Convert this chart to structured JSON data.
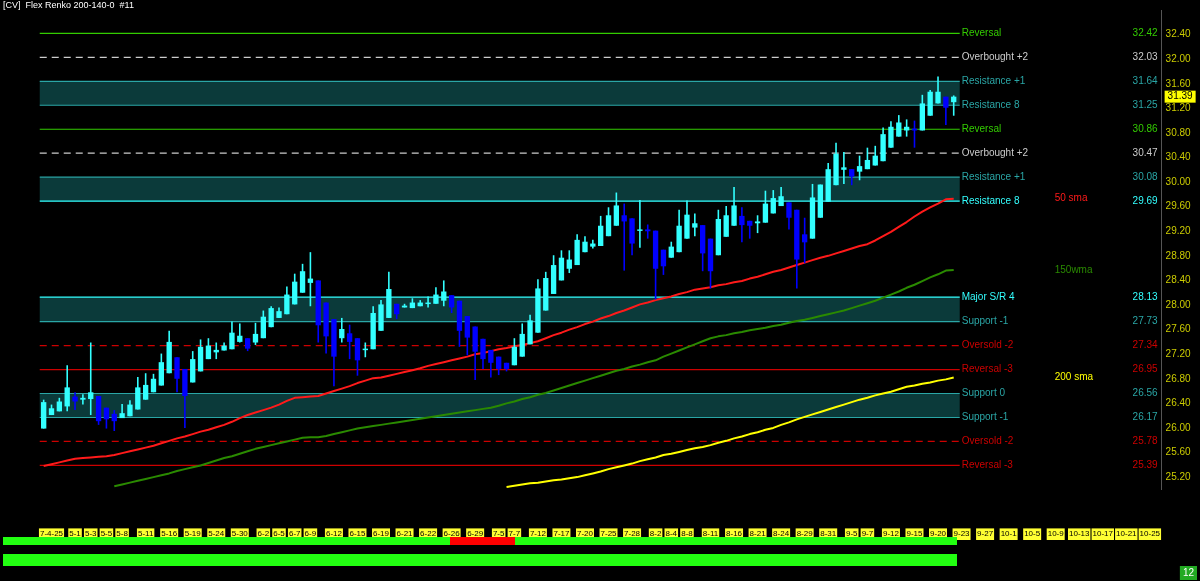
{
  "chart_data": {
    "type": "candlestick",
    "title": "[CV]  Flex Renko 200-140-0  #11",
    "categories": [
      null,
      "7-4-25",
      null,
      null,
      "5-1",
      null,
      "5-3",
      null,
      "5-5",
      null,
      "5-8",
      null,
      null,
      "5-11",
      null,
      null,
      "5-16",
      null,
      null,
      "5-19",
      null,
      null,
      "5-24",
      null,
      null,
      "5-30",
      null,
      null,
      "6-2",
      null,
      "6-5",
      null,
      "6-7",
      null,
      "6-9",
      null,
      null,
      "6-12",
      null,
      null,
      "6-15",
      null,
      null,
      "6-19",
      null,
      null,
      "6-21",
      null,
      null,
      "6-22",
      null,
      null,
      "6-26",
      null,
      null,
      "6-29",
      null,
      null,
      "7-5",
      null,
      "7-7",
      null,
      null,
      "7-12",
      null,
      null,
      "7-17",
      null,
      null,
      "7-20",
      null,
      null,
      "7-25",
      null,
      null,
      "7-28",
      null,
      null,
      "8-2",
      null,
      "8-4",
      null,
      "8-8",
      null,
      null,
      "8-11",
      null,
      null,
      "8-16",
      null,
      null,
      "8-21",
      null,
      null,
      "8-24",
      null,
      null,
      "8-29",
      null,
      null,
      "8-31",
      null,
      null,
      "9-5",
      null,
      "9-7",
      null,
      null,
      "9-12",
      null,
      null,
      "9-15",
      null,
      null,
      "9-20",
      null,
      null,
      "9-23",
      null,
      null,
      "9-27",
      null,
      null,
      "10-1",
      null,
      null,
      "10-5",
      null,
      null,
      "10-9",
      null,
      null,
      "10-13",
      null,
      null,
      "10-17",
      null,
      null,
      "10-21",
      null,
      null,
      "10-25",
      null
    ],
    "ylim": [
      25.0,
      32.8
    ],
    "yticks": [
      {
        "value": 25.2,
        "label": "25.20"
      },
      {
        "value": 25.6,
        "label": "25.60"
      },
      {
        "value": 26.0,
        "label": "26.00"
      },
      {
        "value": 26.4,
        "label": "26.40"
      },
      {
        "value": 26.8,
        "label": "26.80"
      },
      {
        "value": 27.2,
        "label": "27.20"
      },
      {
        "value": 27.6,
        "label": "27.60"
      },
      {
        "value": 28.0,
        "label": "28.00"
      },
      {
        "value": 28.4,
        "label": "28.40"
      },
      {
        "value": 28.8,
        "label": "28.80"
      },
      {
        "value": 29.2,
        "label": "29.20"
      },
      {
        "value": 29.6,
        "label": "29.60"
      },
      {
        "value": 30.0,
        "label": "30.00"
      },
      {
        "value": 30.4,
        "label": "30.40"
      },
      {
        "value": 30.8,
        "label": "30.80"
      },
      {
        "value": 31.2,
        "label": "31.20"
      },
      {
        "value": 31.6,
        "label": "31.60"
      },
      {
        "value": 32.0,
        "label": "32.00"
      },
      {
        "value": 32.4,
        "label": "32.40"
      }
    ],
    "bands": [
      {
        "axis": "y",
        "from": 31.25,
        "to": 31.64,
        "color": "#0b3a3a"
      },
      {
        "axis": "y",
        "from": 29.69,
        "to": 30.08,
        "color": "#0b3a3a"
      },
      {
        "axis": "y",
        "from": 27.73,
        "to": 28.13,
        "color": "#0b3a3a"
      },
      {
        "axis": "y",
        "from": 26.17,
        "to": 26.56,
        "color": "#0b3a3a"
      }
    ],
    "ref_lines": [
      {
        "axis": "y",
        "value": 32.42,
        "label": "Reversal",
        "color": "#33cc00",
        "line_style": "solid"
      },
      {
        "axis": "y",
        "value": 32.03,
        "label": "Overbought +2",
        "color": "#cccccc",
        "line_style": "dashed"
      },
      {
        "axis": "y",
        "value": 31.64,
        "label": "Resistance +1",
        "color": "#2aa6a6",
        "line_style": "solid"
      },
      {
        "axis": "y",
        "value": 31.25,
        "label": "Resistance 8",
        "color": "#2aa6a6",
        "line_style": "solid"
      },
      {
        "axis": "y",
        "value": 30.86,
        "label": "Reversal",
        "color": "#33cc00",
        "line_style": "solid"
      },
      {
        "axis": "y",
        "value": 30.47,
        "label": "Overbought +2",
        "color": "#cccccc",
        "line_style": "dashed"
      },
      {
        "axis": "y",
        "value": 30.08,
        "label": "Resistance +1",
        "color": "#2aa6a6",
        "line_style": "solid"
      },
      {
        "axis": "y",
        "value": 29.69,
        "label": "Resistance 8",
        "color": "#33ffff",
        "line_style": "solid"
      },
      {
        "axis": "y",
        "value": 28.13,
        "label": "Major S/R 4",
        "color": "#33ffff",
        "line_style": "solid"
      },
      {
        "axis": "y",
        "value": 27.73,
        "label": "Support -1",
        "color": "#2aa6a6",
        "line_style": "solid"
      },
      {
        "axis": "y",
        "value": 27.34,
        "label": "Oversold -2",
        "color": "#cc0000",
        "line_style": "dashed"
      },
      {
        "axis": "y",
        "value": 26.95,
        "label": "Reversal -3",
        "color": "#cc0000",
        "line_style": "solid"
      },
      {
        "axis": "y",
        "value": 26.56,
        "label": "Support 0",
        "color": "#2aa6a6",
        "line_style": "solid"
      },
      {
        "axis": "y",
        "value": 26.17,
        "label": "Support -1",
        "color": "#2aa6a6",
        "line_style": "solid"
      },
      {
        "axis": "y",
        "value": 25.78,
        "label": "Oversold -2",
        "color": "#cc0000",
        "line_style": "dashed"
      },
      {
        "axis": "y",
        "value": 25.39,
        "label": "Reversal -3",
        "color": "#cc0000",
        "line_style": "solid"
      }
    ],
    "annotations": [
      "12",
      "31.39",
      "32.42",
      "32.03",
      "31.64",
      "31.25",
      "30.86",
      "30.47",
      "30.08",
      "29.69",
      "28.13",
      "27.73",
      "27.34",
      "26.95",
      "26.56",
      "26.17",
      "25.78",
      "25.39"
    ],
    "series": [
      {
        "type": "line",
        "name": "50 sma",
        "color": "#ff1a1a",
        "values": [
          25.38,
          25.41,
          25.44,
          25.47,
          25.5,
          25.51,
          25.52,
          25.53,
          25.54,
          25.56,
          25.59,
          25.62,
          25.65,
          25.68,
          25.71,
          25.75,
          25.79,
          25.83,
          25.86,
          25.9,
          25.94,
          25.97,
          26.01,
          26.05,
          26.1,
          26.16,
          26.21,
          26.25,
          26.29,
          26.33,
          26.38,
          26.44,
          26.49,
          26.5,
          26.51,
          26.52,
          26.56,
          26.6,
          26.64,
          26.68,
          26.73,
          26.77,
          26.81,
          26.82,
          26.85,
          26.88,
          26.91,
          26.94,
          26.97,
          27.01,
          27.04,
          27.07,
          27.1,
          27.13,
          27.16,
          27.2,
          27.22,
          27.25,
          27.28,
          27.3,
          27.33,
          27.35,
          27.38,
          27.41,
          27.46,
          27.51,
          27.55,
          27.6,
          27.64,
          27.69,
          27.73,
          27.78,
          27.82,
          27.87,
          27.91,
          27.96,
          28.01,
          28.04,
          28.08,
          28.11,
          28.14,
          28.18,
          28.21,
          28.25,
          28.27,
          28.29,
          28.32,
          28.34,
          28.37,
          28.39,
          28.43,
          28.46,
          28.5,
          28.54,
          28.57,
          28.61,
          28.65,
          28.69,
          28.73,
          28.77,
          28.8,
          28.84,
          28.88,
          28.92,
          28.96,
          28.99,
          29.05,
          29.12,
          29.19,
          29.27,
          29.35,
          29.44,
          29.52,
          29.59,
          29.65,
          29.72,
          29.73,
          null,
          null,
          null,
          null,
          null,
          null,
          null,
          null,
          null,
          null,
          null,
          null,
          null,
          null,
          null,
          null,
          null,
          null,
          null,
          null,
          null,
          null,
          null,
          null,
          null,
          null
        ]
      },
      {
        "type": "line",
        "name": "150wma",
        "color": "#2a8a00",
        "values": [
          null,
          null,
          null,
          null,
          null,
          null,
          null,
          null,
          null,
          25.05,
          25.08,
          25.11,
          25.14,
          25.17,
          25.2,
          25.23,
          25.26,
          25.3,
          25.33,
          25.36,
          25.39,
          25.43,
          25.47,
          25.51,
          25.54,
          25.58,
          25.62,
          25.66,
          25.69,
          25.72,
          25.75,
          25.78,
          25.81,
          25.84,
          25.85,
          25.85,
          25.87,
          25.9,
          25.93,
          25.96,
          25.99,
          26.01,
          26.03,
          26.05,
          26.07,
          26.09,
          26.11,
          26.13,
          26.15,
          26.17,
          26.19,
          26.21,
          26.23,
          26.25,
          26.27,
          26.29,
          26.31,
          26.33,
          26.36,
          26.4,
          26.43,
          26.47,
          26.5,
          26.54,
          26.57,
          26.61,
          26.65,
          26.69,
          26.73,
          26.77,
          26.81,
          26.85,
          26.89,
          26.93,
          26.96,
          27.0,
          27.03,
          27.07,
          27.1,
          27.16,
          27.21,
          27.26,
          27.31,
          27.36,
          27.41,
          27.46,
          27.49,
          27.51,
          27.54,
          27.56,
          27.59,
          27.61,
          27.63,
          27.66,
          27.68,
          27.71,
          27.74,
          27.76,
          27.79,
          27.82,
          27.85,
          27.88,
          27.91,
          27.95,
          27.99,
          28.03,
          28.07,
          28.12,
          28.17,
          28.22,
          28.28,
          28.33,
          28.39,
          28.45,
          28.5,
          28.56,
          28.57,
          null,
          null,
          null,
          null,
          null,
          null,
          null,
          null,
          null,
          null,
          null,
          null,
          null,
          null,
          null,
          null,
          null,
          null,
          null,
          null,
          null,
          null,
          null,
          null,
          null,
          null
        ]
      },
      {
        "type": "line",
        "name": "200 sma",
        "color": "#ffff00",
        "values": [
          null,
          null,
          null,
          null,
          null,
          null,
          null,
          null,
          null,
          null,
          null,
          null,
          null,
          null,
          null,
          null,
          null,
          null,
          null,
          null,
          null,
          null,
          null,
          null,
          null,
          null,
          null,
          null,
          null,
          null,
          null,
          null,
          null,
          null,
          null,
          null,
          null,
          null,
          null,
          null,
          null,
          null,
          null,
          null,
          null,
          null,
          null,
          null,
          null,
          null,
          null,
          null,
          null,
          null,
          null,
          null,
          null,
          null,
          null,
          25.04,
          25.06,
          25.08,
          25.1,
          25.11,
          25.13,
          25.15,
          25.16,
          25.18,
          25.2,
          25.23,
          25.26,
          25.29,
          25.33,
          25.36,
          25.39,
          25.42,
          25.46,
          25.49,
          25.52,
          25.56,
          25.58,
          25.61,
          25.64,
          25.67,
          25.69,
          25.72,
          25.76,
          25.79,
          25.83,
          25.86,
          25.9,
          25.93,
          25.97,
          26.0,
          26.05,
          26.09,
          26.14,
          26.18,
          26.22,
          26.26,
          26.3,
          26.34,
          26.38,
          26.42,
          26.46,
          26.49,
          26.53,
          26.56,
          26.59,
          26.63,
          26.67,
          26.69,
          26.72,
          26.74,
          26.77,
          26.79,
          26.82,
          null,
          null,
          null,
          null,
          null,
          null,
          null,
          null,
          null,
          null,
          null,
          null,
          null,
          null,
          null,
          null,
          null,
          null,
          null,
          null,
          null,
          null,
          null,
          null,
          null,
          null
        ]
      },
      {
        "ohlc": [
          [
            25.99,
            26.46,
            25.99,
            26.42
          ],
          [
            26.21,
            26.38,
            26.21,
            26.32
          ],
          [
            26.27,
            26.49,
            26.27,
            26.43
          ],
          [
            26.35,
            27.02,
            26.27,
            26.66
          ],
          [
            26.51,
            26.58,
            26.29,
            26.43
          ],
          [
            26.46,
            26.55,
            26.38,
            26.49
          ],
          [
            26.47,
            27.39,
            26.21,
            26.58
          ],
          [
            26.52,
            26.52,
            26.05,
            26.11
          ],
          [
            26.33,
            26.33,
            25.99,
            26.14
          ],
          [
            26.23,
            26.29,
            25.95,
            26.11
          ],
          [
            26.16,
            26.39,
            26.16,
            26.24
          ],
          [
            26.19,
            26.45,
            26.19,
            26.38
          ],
          [
            26.3,
            26.83,
            26.3,
            26.66
          ],
          [
            26.46,
            26.89,
            26.46,
            26.7
          ],
          [
            26.58,
            26.88,
            26.58,
            26.8
          ],
          [
            26.69,
            27.21,
            26.69,
            27.07
          ],
          [
            26.89,
            27.58,
            26.89,
            27.4
          ],
          [
            27.15,
            27.15,
            26.58,
            26.8
          ],
          [
            26.96,
            26.96,
            26.0,
            26.52
          ],
          [
            26.74,
            27.25,
            26.74,
            27.12
          ],
          [
            26.92,
            27.44,
            26.92,
            27.32
          ],
          [
            27.12,
            27.46,
            27.12,
            27.34
          ],
          [
            27.23,
            27.39,
            27.12,
            27.27
          ],
          [
            27.26,
            27.39,
            27.26,
            27.34
          ],
          [
            27.28,
            27.73,
            27.28,
            27.55
          ],
          [
            27.4,
            27.7,
            27.39,
            27.5
          ],
          [
            27.46,
            27.46,
            27.25,
            27.29
          ],
          [
            27.39,
            27.71,
            27.35,
            27.53
          ],
          [
            27.46,
            27.91,
            27.46,
            27.81
          ],
          [
            27.64,
            27.98,
            27.64,
            27.95
          ],
          [
            27.79,
            27.96,
            27.79,
            27.9
          ],
          [
            27.85,
            28.3,
            27.85,
            28.17
          ],
          [
            28.01,
            28.51,
            28.01,
            28.38
          ],
          [
            28.2,
            28.67,
            28.2,
            28.55
          ],
          [
            28.36,
            28.86,
            27.98,
            28.43
          ],
          [
            28.4,
            28.4,
            27.39,
            27.67
          ],
          [
            28.04,
            28.04,
            27.21,
            27.49
          ],
          [
            27.77,
            27.77,
            26.68,
            27.16
          ],
          [
            27.46,
            27.79,
            27.39,
            27.61
          ],
          [
            27.54,
            27.68,
            27.12,
            27.4
          ],
          [
            27.46,
            27.46,
            26.85,
            27.1
          ],
          [
            27.27,
            27.39,
            27.15,
            27.29
          ],
          [
            27.28,
            27.98,
            27.28,
            27.87
          ],
          [
            27.58,
            28.08,
            27.58,
            28.01
          ],
          [
            27.79,
            28.54,
            27.79,
            28.26
          ],
          [
            28.02,
            28.02,
            27.77,
            27.85
          ],
          [
            27.96,
            28.02,
            27.96,
            27.99
          ],
          [
            27.95,
            28.11,
            27.95,
            28.04
          ],
          [
            27.98,
            28.08,
            27.98,
            28.04
          ],
          [
            28.02,
            28.14,
            27.96,
            28.04
          ],
          [
            28.02,
            28.29,
            28.02,
            28.17
          ],
          [
            28.07,
            28.4,
            27.98,
            28.22
          ],
          [
            28.16,
            28.16,
            27.87,
            27.96
          ],
          [
            28.07,
            28.07,
            27.32,
            27.58
          ],
          [
            27.82,
            27.82,
            27.18,
            27.47
          ],
          [
            27.65,
            27.65,
            26.78,
            27.24
          ],
          [
            27.45,
            27.45,
            26.96,
            27.12
          ],
          [
            27.27,
            27.27,
            26.82,
            27.06
          ],
          [
            27.16,
            27.16,
            26.86,
            26.96
          ],
          [
            27.06,
            27.06,
            26.92,
            26.96
          ],
          [
            27.02,
            27.46,
            27.02,
            27.32
          ],
          [
            27.16,
            27.7,
            27.16,
            27.53
          ],
          [
            27.36,
            27.84,
            27.36,
            27.75
          ],
          [
            27.55,
            28.42,
            27.55,
            28.27
          ],
          [
            27.91,
            28.54,
            27.91,
            28.44
          ],
          [
            28.18,
            28.81,
            28.18,
            28.65
          ],
          [
            28.4,
            28.89,
            28.4,
            28.77
          ],
          [
            28.59,
            28.89,
            28.52,
            28.74
          ],
          [
            28.65,
            29.15,
            28.65,
            29.06
          ],
          [
            28.86,
            29.12,
            28.86,
            29.03
          ],
          [
            28.95,
            29.06,
            28.92,
            29.0
          ],
          [
            28.96,
            29.45,
            28.96,
            29.29
          ],
          [
            29.12,
            29.59,
            29.12,
            29.46
          ],
          [
            29.29,
            29.83,
            29.29,
            29.62
          ],
          [
            29.46,
            29.65,
            28.56,
            29.36
          ],
          [
            29.41,
            29.41,
            28.81,
            29.0
          ],
          [
            29.21,
            29.71,
            28.93,
            29.23
          ],
          [
            29.23,
            29.31,
            29.08,
            29.2
          ],
          [
            29.21,
            29.21,
            28.09,
            28.59
          ],
          [
            28.9,
            28.9,
            28.49,
            28.63
          ],
          [
            28.77,
            29.03,
            28.77,
            28.95
          ],
          [
            28.86,
            29.55,
            28.86,
            29.29
          ],
          [
            29.08,
            29.7,
            29.08,
            29.47
          ],
          [
            29.26,
            29.49,
            29.12,
            29.33
          ],
          [
            29.3,
            29.3,
            28.55,
            28.84
          ],
          [
            29.08,
            29.08,
            28.27,
            28.55
          ],
          [
            28.81,
            29.55,
            28.81,
            29.4
          ],
          [
            29.11,
            29.61,
            29.11,
            29.46
          ],
          [
            29.29,
            29.92,
            29.29,
            29.62
          ],
          [
            29.45,
            29.59,
            29.02,
            29.3
          ],
          [
            29.37,
            29.37,
            29.08,
            29.29
          ],
          [
            29.33,
            29.46,
            29.17,
            29.36
          ],
          [
            29.34,
            29.86,
            29.34,
            29.65
          ],
          [
            29.49,
            29.87,
            29.49,
            29.74
          ],
          [
            29.61,
            29.92,
            29.61,
            29.77
          ],
          [
            29.67,
            29.67,
            29.23,
            29.42
          ],
          [
            29.55,
            29.55,
            28.27,
            28.74
          ],
          [
            29.15,
            29.42,
            28.68,
            29.02
          ],
          [
            29.08,
            29.97,
            29.08,
            29.75
          ],
          [
            29.42,
            29.96,
            29.42,
            29.96
          ],
          [
            29.68,
            30.31,
            29.68,
            30.21
          ],
          [
            29.95,
            30.64,
            29.95,
            30.46
          ],
          [
            30.2,
            30.49,
            29.97,
            30.24
          ],
          [
            30.21,
            30.21,
            29.95,
            30.09
          ],
          [
            30.17,
            30.43,
            30.03,
            30.26
          ],
          [
            30.21,
            30.56,
            30.21,
            30.36
          ],
          [
            30.27,
            30.59,
            30.27,
            30.43
          ],
          [
            30.34,
            30.89,
            30.34,
            30.78
          ],
          [
            30.56,
            30.99,
            30.56,
            30.9
          ],
          [
            30.74,
            31.09,
            30.74,
            30.97
          ],
          [
            30.84,
            31.02,
            30.74,
            30.9
          ],
          [
            30.87,
            31.0,
            30.56,
            30.84
          ],
          [
            30.84,
            31.42,
            30.84,
            31.28
          ],
          [
            31.08,
            31.5,
            31.08,
            31.47
          ],
          [
            31.28,
            31.72,
            31.28,
            31.47
          ],
          [
            31.39,
            31.39,
            30.93,
            31.21
          ],
          [
            31.3,
            31.41,
            31.08,
            31.39
          ],
          null,
          null,
          null,
          null,
          null,
          null,
          null,
          null,
          null,
          null,
          null,
          null,
          null,
          null,
          null,
          null,
          null,
          null,
          null,
          null,
          null,
          null,
          null,
          null,
          null,
          null
        ],
        "colors": [
          "#33ffff",
          "#33ffff",
          "#33ffff",
          "#33ffff",
          "#0000ff",
          "#33ffff",
          "#33ffff",
          "#0000ff",
          "#0000ff",
          "#0000ff",
          "#33ffff",
          "#33ffff",
          "#33ffff",
          "#33ffff",
          "#33ffff",
          "#33ffff",
          "#33ffff",
          "#0000ff",
          "#0000ff",
          "#33ffff",
          "#33ffff",
          "#33ffff",
          "#33ffff",
          "#33ffff",
          "#33ffff",
          "#33ffff",
          "#0000ff",
          "#33ffff",
          "#33ffff",
          "#33ffff",
          "#33ffff",
          "#33ffff",
          "#33ffff",
          "#33ffff",
          "#33ffff",
          "#0000ff",
          "#0000ff",
          "#0000ff",
          "#33ffff",
          "#0000ff",
          "#0000ff",
          "#33ffff",
          "#33ffff",
          "#33ffff",
          "#33ffff",
          "#0000ff",
          "#33ffff",
          "#33ffff",
          "#33ffff",
          "#33ffff",
          "#33ffff",
          "#33ffff",
          "#0000ff",
          "#0000ff",
          "#0000ff",
          "#0000ff",
          "#0000ff",
          "#0000ff",
          "#0000ff",
          "#0000ff",
          "#33ffff",
          "#33ffff",
          "#33ffff",
          "#33ffff",
          "#33ffff",
          "#33ffff",
          "#33ffff",
          "#33ffff",
          "#33ffff",
          "#33ffff",
          "#33ffff",
          "#33ffff",
          "#33ffff",
          "#33ffff",
          "#0000ff",
          "#0000ff",
          "#33ffff",
          "#0000ff",
          "#0000ff",
          "#0000ff",
          "#33ffff",
          "#33ffff",
          "#33ffff",
          "#33ffff",
          "#0000ff",
          "#0000ff",
          "#33ffff",
          "#33ffff",
          "#33ffff",
          "#0000ff",
          "#0000ff",
          "#33ffff",
          "#33ffff",
          "#33ffff",
          "#33ffff",
          "#0000ff",
          "#0000ff",
          "#0000ff",
          "#33ffff",
          "#33ffff",
          "#33ffff",
          "#33ffff",
          "#33ffff",
          "#0000ff",
          "#33ffff",
          "#33ffff",
          "#33ffff",
          "#33ffff",
          "#33ffff",
          "#33ffff",
          "#33ffff",
          "#0000ff",
          "#33ffff",
          "#33ffff",
          "#33ffff",
          "#0000ff",
          "#33ffff",
          null,
          null,
          null,
          null,
          null,
          null,
          null,
          null,
          null,
          null,
          null,
          null,
          null,
          null,
          null,
          null,
          null,
          null,
          null,
          null,
          null,
          null,
          null,
          null,
          null,
          null
        ]
      }
    ]
  }
}
